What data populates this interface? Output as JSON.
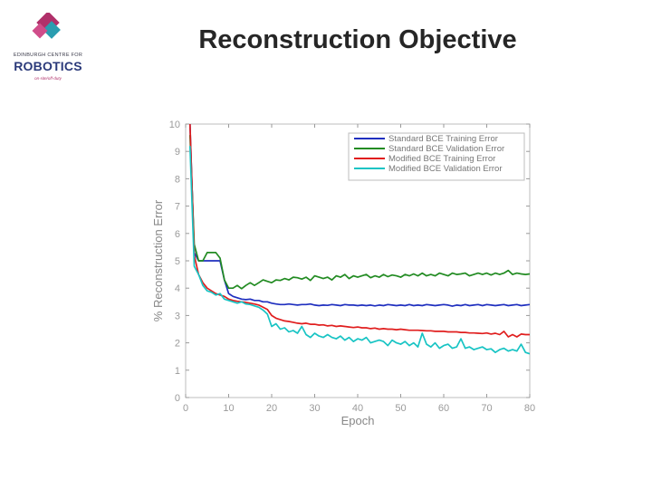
{
  "header": {
    "title": "Reconstruction Objective"
  },
  "logo": {
    "line1": "EDINBURGH CENTRE FOR",
    "line2": "ROBOTICS",
    "line3": "on-site/off-duty"
  },
  "colors": {
    "blue": "#1f2fbf",
    "green": "#228b22",
    "red": "#e01e1e",
    "cyan": "#18c4c4",
    "logo_magenta": "#b0306a",
    "logo_teal": "#2a9db0",
    "logo_navy": "#2b3a7a"
  },
  "chart_data": {
    "type": "line",
    "title": "",
    "xlabel": "Epoch",
    "ylabel": "% Reconstruction Error",
    "xlim": [
      0,
      80
    ],
    "ylim": [
      0,
      10
    ],
    "xticks": [
      0,
      10,
      20,
      30,
      40,
      50,
      60,
      70,
      80
    ],
    "yticks": [
      0,
      1,
      2,
      3,
      4,
      5,
      6,
      7,
      8,
      9,
      10
    ],
    "legend_position": "top-right",
    "x": [
      1,
      2,
      3,
      4,
      5,
      6,
      7,
      8,
      9,
      10,
      11,
      12,
      13,
      14,
      15,
      16,
      17,
      18,
      19,
      20,
      21,
      22,
      23,
      24,
      25,
      26,
      27,
      28,
      29,
      30,
      31,
      32,
      33,
      34,
      35,
      36,
      37,
      38,
      39,
      40,
      41,
      42,
      43,
      44,
      45,
      46,
      47,
      48,
      49,
      50,
      51,
      52,
      53,
      54,
      55,
      56,
      57,
      58,
      59,
      60,
      61,
      62,
      63,
      64,
      65,
      66,
      67,
      68,
      69,
      70,
      71,
      72,
      73,
      74,
      75,
      76,
      77,
      78,
      79,
      80
    ],
    "series": [
      {
        "name": "Standard BCE Training Error",
        "color": "#1f2fbf",
        "values": [
          10,
          5.3,
          5.0,
          5.0,
          5.0,
          5.0,
          5.0,
          5.0,
          4.3,
          3.8,
          3.7,
          3.65,
          3.6,
          3.58,
          3.6,
          3.55,
          3.55,
          3.5,
          3.5,
          3.45,
          3.42,
          3.4,
          3.4,
          3.42,
          3.4,
          3.38,
          3.4,
          3.4,
          3.42,
          3.38,
          3.36,
          3.38,
          3.37,
          3.4,
          3.38,
          3.36,
          3.4,
          3.38,
          3.38,
          3.36,
          3.38,
          3.36,
          3.38,
          3.35,
          3.38,
          3.36,
          3.4,
          3.38,
          3.36,
          3.38,
          3.36,
          3.4,
          3.36,
          3.38,
          3.36,
          3.4,
          3.38,
          3.36,
          3.38,
          3.4,
          3.38,
          3.34,
          3.38,
          3.36,
          3.4,
          3.36,
          3.38,
          3.4,
          3.36,
          3.4,
          3.38,
          3.36,
          3.38,
          3.4,
          3.36,
          3.38,
          3.4,
          3.36,
          3.38,
          3.4
        ]
      },
      {
        "name": "Standard BCE Validation Error",
        "color": "#228b22",
        "values": [
          9.6,
          5.6,
          5.0,
          5.0,
          5.3,
          5.3,
          5.3,
          5.1,
          4.3,
          4.0,
          4.0,
          4.1,
          3.98,
          4.1,
          4.2,
          4.1,
          4.2,
          4.3,
          4.25,
          4.2,
          4.3,
          4.28,
          4.35,
          4.3,
          4.4,
          4.38,
          4.33,
          4.4,
          4.28,
          4.45,
          4.4,
          4.35,
          4.4,
          4.3,
          4.45,
          4.4,
          4.5,
          4.35,
          4.45,
          4.4,
          4.45,
          4.5,
          4.38,
          4.45,
          4.4,
          4.5,
          4.42,
          4.48,
          4.45,
          4.4,
          4.5,
          4.45,
          4.52,
          4.45,
          4.55,
          4.45,
          4.5,
          4.45,
          4.55,
          4.5,
          4.45,
          4.55,
          4.5,
          4.52,
          4.55,
          4.45,
          4.5,
          4.55,
          4.5,
          4.55,
          4.48,
          4.55,
          4.5,
          4.55,
          4.65,
          4.5,
          4.55,
          4.52,
          4.5,
          4.52
        ]
      },
      {
        "name": "Modified BCE Training Error",
        "color": "#e01e1e",
        "values": [
          10,
          5.2,
          4.5,
          4.2,
          4.0,
          3.9,
          3.8,
          3.75,
          3.7,
          3.6,
          3.55,
          3.52,
          3.5,
          3.48,
          3.45,
          3.42,
          3.38,
          3.3,
          3.22,
          3.0,
          2.9,
          2.85,
          2.8,
          2.78,
          2.75,
          2.72,
          2.7,
          2.72,
          2.68,
          2.68,
          2.65,
          2.66,
          2.62,
          2.64,
          2.6,
          2.62,
          2.6,
          2.58,
          2.56,
          2.58,
          2.55,
          2.55,
          2.52,
          2.54,
          2.5,
          2.52,
          2.5,
          2.5,
          2.48,
          2.5,
          2.48,
          2.46,
          2.46,
          2.46,
          2.45,
          2.44,
          2.44,
          2.42,
          2.42,
          2.42,
          2.4,
          2.4,
          2.4,
          2.38,
          2.38,
          2.36,
          2.36,
          2.35,
          2.34,
          2.36,
          2.32,
          2.35,
          2.3,
          2.42,
          2.22,
          2.3,
          2.22,
          2.32,
          2.3,
          2.3
        ]
      },
      {
        "name": "Modified BCE Validation Error",
        "color": "#18c4c4",
        "values": [
          9.2,
          4.8,
          4.5,
          4.1,
          3.9,
          3.85,
          3.75,
          3.8,
          3.6,
          3.55,
          3.5,
          3.45,
          3.5,
          3.42,
          3.4,
          3.35,
          3.3,
          3.2,
          3.05,
          2.6,
          2.7,
          2.5,
          2.55,
          2.4,
          2.45,
          2.35,
          2.6,
          2.3,
          2.2,
          2.35,
          2.25,
          2.2,
          2.3,
          2.2,
          2.15,
          2.25,
          2.1,
          2.2,
          2.05,
          2.15,
          2.1,
          2.2,
          2.0,
          2.05,
          2.1,
          2.05,
          1.9,
          2.1,
          2.0,
          1.95,
          2.05,
          1.9,
          2.0,
          1.85,
          2.35,
          1.95,
          1.85,
          2.0,
          1.8,
          1.9,
          1.95,
          1.8,
          1.85,
          2.15,
          1.8,
          1.85,
          1.75,
          1.8,
          1.85,
          1.75,
          1.78,
          1.65,
          1.75,
          1.8,
          1.7,
          1.75,
          1.7,
          1.95,
          1.65,
          1.6
        ]
      }
    ]
  }
}
